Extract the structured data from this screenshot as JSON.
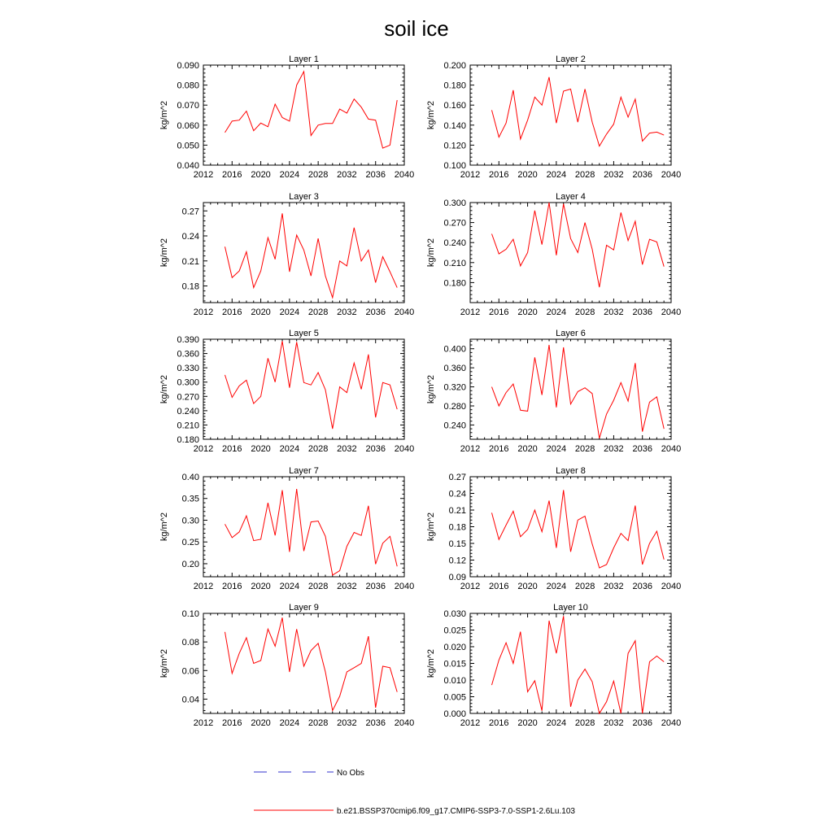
{
  "figure": {
    "title": "soil ice",
    "legend": [
      {
        "label": "No Obs",
        "color": "#3333cc",
        "style": "dashed"
      },
      {
        "label": "b.e21.BSSP370cmip6.f09_g17.CMIP6-SSP3-7.0-SSP1-2.6Lu.103",
        "color": "#ff0000",
        "style": "solid"
      }
    ]
  },
  "chart_data": [
    {
      "type": "line",
      "title": "Layer 1",
      "ylabel": "kg/m^2",
      "xlim": [
        2012,
        2040
      ],
      "ylim": [
        0.04,
        0.09
      ],
      "xticks": [
        2012,
        2016,
        2020,
        2024,
        2028,
        2032,
        2036,
        2040
      ],
      "yticks": [
        "0.040",
        "0.050",
        "0.060",
        "0.070",
        "0.080",
        "0.090"
      ],
      "x": [
        2015,
        2016,
        2017,
        2018,
        2019,
        2020,
        2021,
        2022,
        2023,
        2024,
        2025,
        2026,
        2027,
        2028,
        2029,
        2030,
        2031,
        2032,
        2033,
        2034,
        2035,
        2036,
        2037,
        2038,
        2039
      ],
      "series": [
        {
          "color": "#ff0000",
          "values": [
            0.0563,
            0.062,
            0.0625,
            0.067,
            0.0572,
            0.061,
            0.0592,
            0.0705,
            0.0638,
            0.062,
            0.08,
            0.0868,
            0.0548,
            0.06,
            0.0608,
            0.0608,
            0.068,
            0.066,
            0.073,
            0.069,
            0.063,
            0.0625,
            0.0485,
            0.05,
            0.0725
          ]
        }
      ]
    },
    {
      "type": "line",
      "title": "Layer 2",
      "ylabel": "kg/m^2",
      "xlim": [
        2012,
        2040
      ],
      "ylim": [
        0.1,
        0.2
      ],
      "xticks": [
        2012,
        2016,
        2020,
        2024,
        2028,
        2032,
        2036,
        2040
      ],
      "yticks": [
        "0.100",
        "0.120",
        "0.140",
        "0.160",
        "0.180",
        "0.200"
      ],
      "x": [
        2015,
        2016,
        2017,
        2018,
        2019,
        2020,
        2021,
        2022,
        2023,
        2024,
        2025,
        2026,
        2027,
        2028,
        2029,
        2030,
        2031,
        2032,
        2033,
        2034,
        2035,
        2036,
        2037,
        2038,
        2039
      ],
      "series": [
        {
          "color": "#ff0000",
          "values": [
            0.155,
            0.128,
            0.142,
            0.175,
            0.126,
            0.145,
            0.168,
            0.16,
            0.188,
            0.142,
            0.174,
            0.176,
            0.143,
            0.176,
            0.143,
            0.119,
            0.131,
            0.141,
            0.168,
            0.148,
            0.166,
            0.124,
            0.132,
            0.133,
            0.13
          ]
        }
      ]
    },
    {
      "type": "line",
      "title": "Layer 3",
      "ylabel": "kg/m^2",
      "xlim": [
        2012,
        2040
      ],
      "ylim": [
        0.16,
        0.28
      ],
      "xticks": [
        2012,
        2016,
        2020,
        2024,
        2028,
        2032,
        2036,
        2040
      ],
      "yticks": [
        "0.18",
        "0.21",
        "0.24",
        "0.27"
      ],
      "x": [
        2015,
        2016,
        2017,
        2018,
        2019,
        2020,
        2021,
        2022,
        2023,
        2024,
        2025,
        2026,
        2027,
        2028,
        2029,
        2030,
        2031,
        2032,
        2033,
        2034,
        2035,
        2036,
        2037,
        2038,
        2039
      ],
      "series": [
        {
          "color": "#ff0000",
          "values": [
            0.227,
            0.19,
            0.198,
            0.221,
            0.178,
            0.198,
            0.238,
            0.212,
            0.267,
            0.197,
            0.241,
            0.223,
            0.192,
            0.237,
            0.192,
            0.166,
            0.21,
            0.204,
            0.25,
            0.21,
            0.223,
            0.184,
            0.215,
            0.197,
            0.178
          ]
        }
      ]
    },
    {
      "type": "line",
      "title": "Layer 4",
      "ylabel": "kg/m^2",
      "xlim": [
        2012,
        2040
      ],
      "ylim": [
        0.15,
        0.3
      ],
      "xticks": [
        2012,
        2016,
        2020,
        2024,
        2028,
        2032,
        2036,
        2040
      ],
      "yticks": [
        "0.180",
        "0.210",
        "0.240",
        "0.270",
        "0.300"
      ],
      "x": [
        2015,
        2016,
        2017,
        2018,
        2019,
        2020,
        2021,
        2022,
        2023,
        2024,
        2025,
        2026,
        2027,
        2028,
        2029,
        2030,
        2031,
        2032,
        2033,
        2034,
        2035,
        2036,
        2037,
        2038,
        2039
      ],
      "series": [
        {
          "color": "#ff0000",
          "values": [
            0.253,
            0.223,
            0.23,
            0.245,
            0.205,
            0.225,
            0.288,
            0.237,
            0.3,
            0.221,
            0.298,
            0.246,
            0.225,
            0.27,
            0.23,
            0.173,
            0.236,
            0.229,
            0.285,
            0.243,
            0.272,
            0.207,
            0.245,
            0.241,
            0.204
          ]
        }
      ]
    },
    {
      "type": "line",
      "title": "Layer 5",
      "ylabel": "kg/m^2",
      "xlim": [
        2012,
        2040
      ],
      "ylim": [
        0.18,
        0.39
      ],
      "xticks": [
        2012,
        2016,
        2020,
        2024,
        2028,
        2032,
        2036,
        2040
      ],
      "yticks": [
        "0.180",
        "0.210",
        "0.240",
        "0.270",
        "0.300",
        "0.330",
        "0.360",
        "0.390"
      ],
      "x": [
        2015,
        2016,
        2017,
        2018,
        2019,
        2020,
        2021,
        2022,
        2023,
        2024,
        2025,
        2026,
        2027,
        2028,
        2029,
        2030,
        2031,
        2032,
        2033,
        2034,
        2035,
        2036,
        2037,
        2038,
        2039
      ],
      "series": [
        {
          "color": "#ff0000",
          "values": [
            0.315,
            0.268,
            0.292,
            0.304,
            0.255,
            0.27,
            0.35,
            0.3,
            0.386,
            0.288,
            0.384,
            0.299,
            0.294,
            0.32,
            0.284,
            0.202,
            0.29,
            0.278,
            0.34,
            0.285,
            0.358,
            0.226,
            0.299,
            0.294,
            0.243
          ]
        }
      ]
    },
    {
      "type": "line",
      "title": "Layer 6",
      "ylabel": "kg/m^2",
      "xlim": [
        2012,
        2040
      ],
      "ylim": [
        0.21,
        0.42
      ],
      "xticks": [
        2012,
        2016,
        2020,
        2024,
        2028,
        2032,
        2036,
        2040
      ],
      "yticks": [
        "0.240",
        "0.280",
        "0.320",
        "0.360",
        "0.400"
      ],
      "x": [
        2015,
        2016,
        2017,
        2018,
        2019,
        2020,
        2021,
        2022,
        2023,
        2024,
        2025,
        2026,
        2027,
        2028,
        2029,
        2030,
        2031,
        2032,
        2033,
        2034,
        2035,
        2036,
        2037,
        2038,
        2039
      ],
      "series": [
        {
          "color": "#ff0000",
          "values": [
            0.32,
            0.28,
            0.308,
            0.326,
            0.271,
            0.269,
            0.382,
            0.303,
            0.408,
            0.277,
            0.403,
            0.284,
            0.31,
            0.318,
            0.306,
            0.212,
            0.263,
            0.292,
            0.329,
            0.29,
            0.37,
            0.226,
            0.288,
            0.299,
            0.232
          ]
        }
      ]
    },
    {
      "type": "line",
      "title": "Layer 7",
      "ylabel": "kg/m^2",
      "xlim": [
        2012,
        2040
      ],
      "ylim": [
        0.17,
        0.4
      ],
      "xticks": [
        2012,
        2016,
        2020,
        2024,
        2028,
        2032,
        2036,
        2040
      ],
      "yticks": [
        "0.20",
        "0.25",
        "0.30",
        "0.35",
        "0.40"
      ],
      "x": [
        2015,
        2016,
        2017,
        2018,
        2019,
        2020,
        2021,
        2022,
        2023,
        2024,
        2025,
        2026,
        2027,
        2028,
        2029,
        2030,
        2031,
        2032,
        2033,
        2034,
        2035,
        2036,
        2037,
        2038,
        2039
      ],
      "series": [
        {
          "color": "#ff0000",
          "values": [
            0.291,
            0.26,
            0.273,
            0.31,
            0.253,
            0.256,
            0.34,
            0.265,
            0.369,
            0.227,
            0.372,
            0.229,
            0.296,
            0.298,
            0.263,
            0.174,
            0.184,
            0.24,
            0.272,
            0.265,
            0.333,
            0.199,
            0.247,
            0.263,
            0.194
          ]
        }
      ]
    },
    {
      "type": "line",
      "title": "Layer 8",
      "ylabel": "kg/m^2",
      "xlim": [
        2012,
        2040
      ],
      "ylim": [
        0.09,
        0.27
      ],
      "xticks": [
        2012,
        2016,
        2020,
        2024,
        2028,
        2032,
        2036,
        2040
      ],
      "yticks": [
        "0.09",
        "0.12",
        "0.15",
        "0.18",
        "0.21",
        "0.24",
        "0.27"
      ],
      "x": [
        2015,
        2016,
        2017,
        2018,
        2019,
        2020,
        2021,
        2022,
        2023,
        2024,
        2025,
        2026,
        2027,
        2028,
        2029,
        2030,
        2031,
        2032,
        2033,
        2034,
        2035,
        2036,
        2037,
        2038,
        2039
      ],
      "series": [
        {
          "color": "#ff0000",
          "values": [
            0.205,
            0.157,
            0.183,
            0.208,
            0.162,
            0.175,
            0.21,
            0.171,
            0.227,
            0.142,
            0.246,
            0.135,
            0.192,
            0.199,
            0.149,
            0.106,
            0.112,
            0.142,
            0.168,
            0.155,
            0.218,
            0.112,
            0.15,
            0.172,
            0.121
          ]
        }
      ]
    },
    {
      "type": "line",
      "title": "Layer 9",
      "ylabel": "kg/m^2",
      "xlim": [
        2012,
        2040
      ],
      "ylim": [
        0.03,
        0.1
      ],
      "xticks": [
        2012,
        2016,
        2020,
        2024,
        2028,
        2032,
        2036,
        2040
      ],
      "yticks": [
        "0.04",
        "0.06",
        "0.08",
        "0.10"
      ],
      "x": [
        2015,
        2016,
        2017,
        2018,
        2019,
        2020,
        2021,
        2022,
        2023,
        2024,
        2025,
        2026,
        2027,
        2028,
        2029,
        2030,
        2031,
        2032,
        2033,
        2034,
        2035,
        2036,
        2037,
        2038,
        2039
      ],
      "series": [
        {
          "color": "#ff0000",
          "values": [
            0.087,
            0.058,
            0.072,
            0.083,
            0.065,
            0.067,
            0.089,
            0.077,
            0.097,
            0.059,
            0.089,
            0.063,
            0.074,
            0.079,
            0.059,
            0.032,
            0.042,
            0.059,
            0.062,
            0.065,
            0.084,
            0.034,
            0.063,
            0.062,
            0.045
          ]
        }
      ]
    },
    {
      "type": "line",
      "title": "Layer 10",
      "ylabel": "kg/m^2",
      "xlim": [
        2012,
        2040
      ],
      "ylim": [
        0,
        0.03
      ],
      "xticks": [
        2012,
        2016,
        2020,
        2024,
        2028,
        2032,
        2036,
        2040
      ],
      "yticks": [
        "0.000",
        "0.005",
        "0.010",
        "0.015",
        "0.020",
        "0.025",
        "0.030"
      ],
      "x": [
        2015,
        2016,
        2017,
        2018,
        2019,
        2020,
        2021,
        2022,
        2023,
        2024,
        2025,
        2026,
        2027,
        2028,
        2029,
        2030,
        2031,
        2032,
        2033,
        2034,
        2035,
        2036,
        2037,
        2038,
        2039
      ],
      "series": [
        {
          "color": "#ff0000",
          "values": [
            0.0085,
            0.016,
            0.0212,
            0.015,
            0.0245,
            0.0065,
            0.0098,
            0.0008,
            0.0278,
            0.018,
            0.0292,
            0.002,
            0.01,
            0.0133,
            0.0095,
            0.0,
            0.0035,
            0.0097,
            0.0,
            0.018,
            0.0218,
            0.0,
            0.0155,
            0.0172,
            0.0155
          ]
        }
      ]
    }
  ]
}
